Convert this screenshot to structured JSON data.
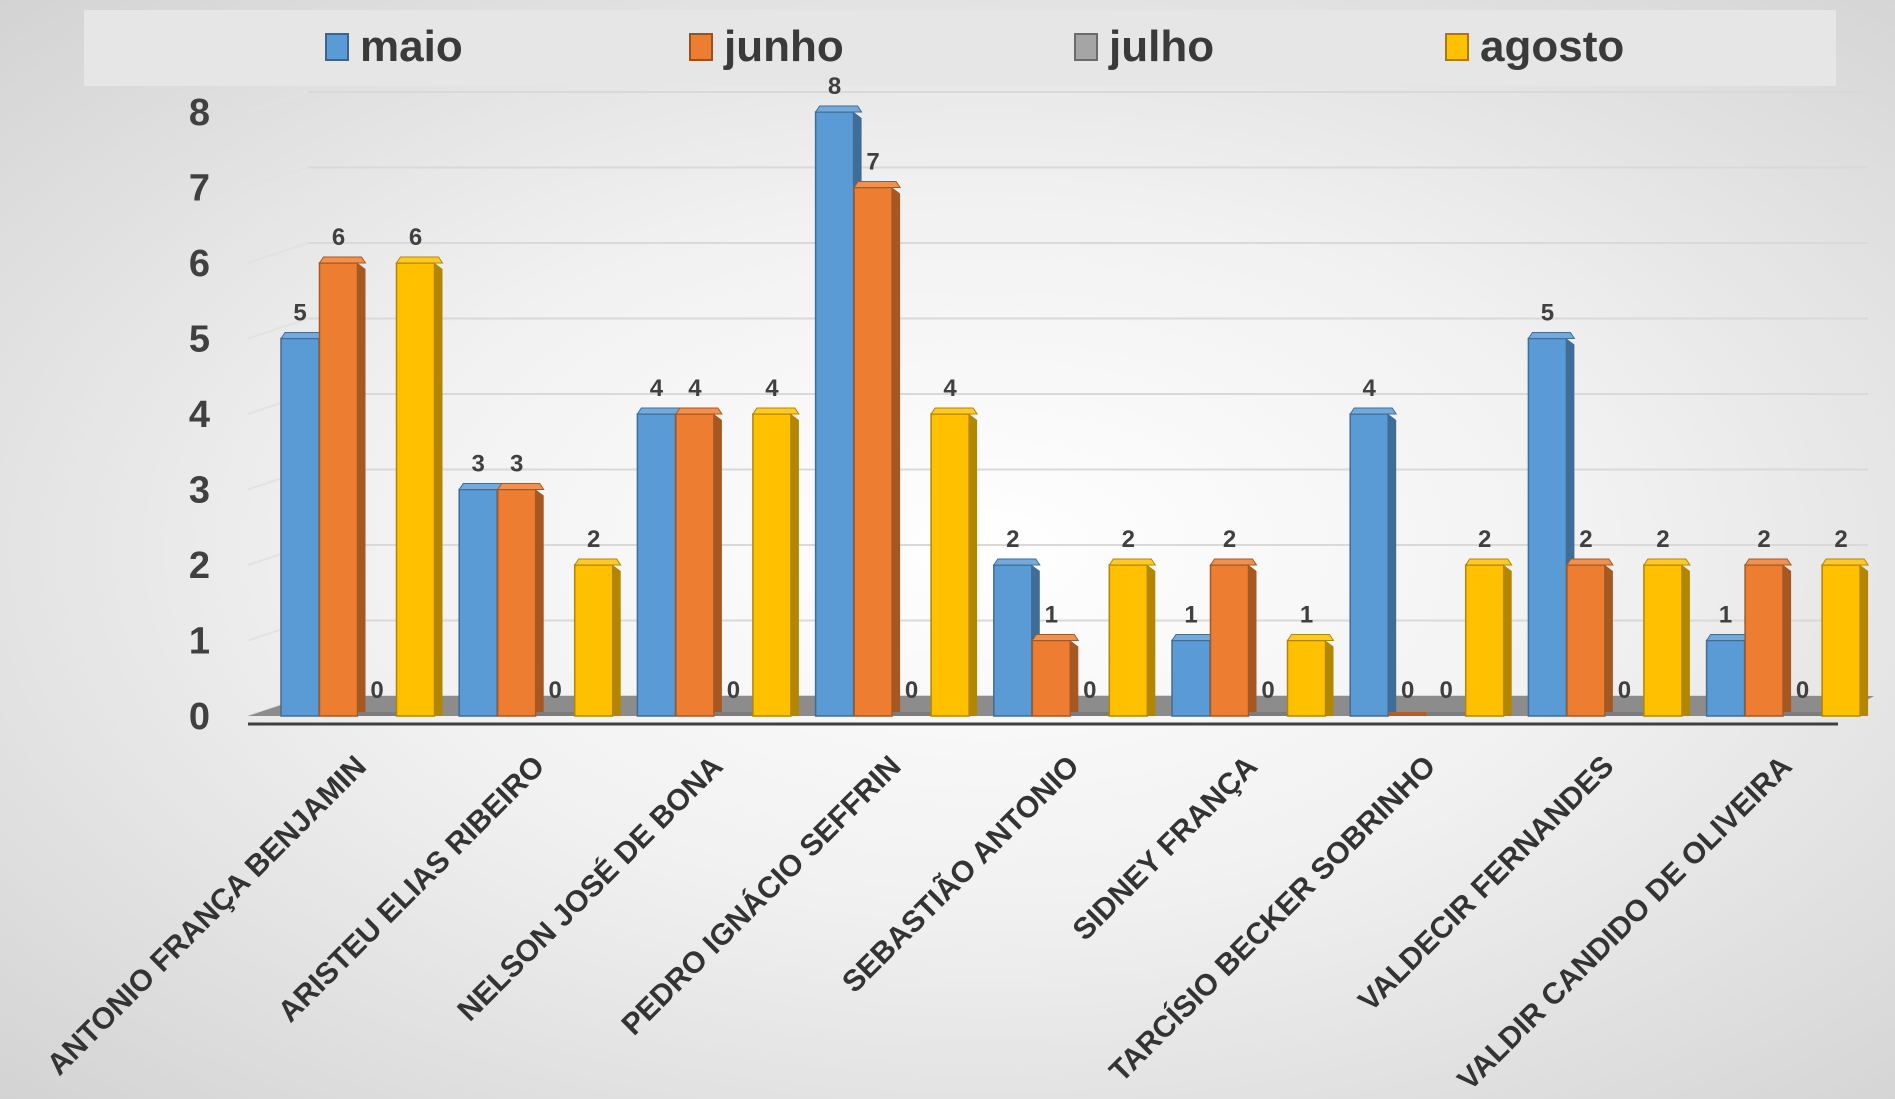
{
  "chart_data": {
    "type": "bar",
    "title": "",
    "xlabel": "",
    "ylabel": "",
    "ylim": [
      0,
      8
    ],
    "yticks": [
      "0",
      "1",
      "2",
      "3",
      "4",
      "5",
      "6",
      "7",
      "8"
    ],
    "grid": true,
    "legend_position": "top",
    "categories": [
      "ANTONIO FRANÇA BENJAMIN",
      "ARISTEU ELIAS RIBEIRO",
      "NELSON JOSÉ DE BONA",
      "PEDRO IGNÁCIO SEFFRIN",
      "SEBASTIÃO ANTONIO",
      "SIDNEY FRANÇA",
      "TARCÍSIO BECKER SOBRINHO",
      "VALDECIR FERNANDES",
      "VALDIR CANDIDO DE OLIVEIRA"
    ],
    "series": [
      {
        "name": "maio",
        "color": "#5B9BD5",
        "values": [
          5,
          3,
          4,
          8,
          2,
          1,
          4,
          5,
          1
        ]
      },
      {
        "name": "junho",
        "color": "#ED7D31",
        "values": [
          6,
          3,
          4,
          7,
          1,
          2,
          0,
          2,
          2
        ]
      },
      {
        "name": "julho",
        "color": "#A5A5A5",
        "values": [
          0,
          0,
          0,
          0,
          0,
          0,
          0,
          0,
          0
        ]
      },
      {
        "name": "agosto",
        "color": "#FFC000",
        "values": [
          6,
          2,
          4,
          4,
          2,
          1,
          2,
          2,
          2
        ]
      }
    ]
  }
}
